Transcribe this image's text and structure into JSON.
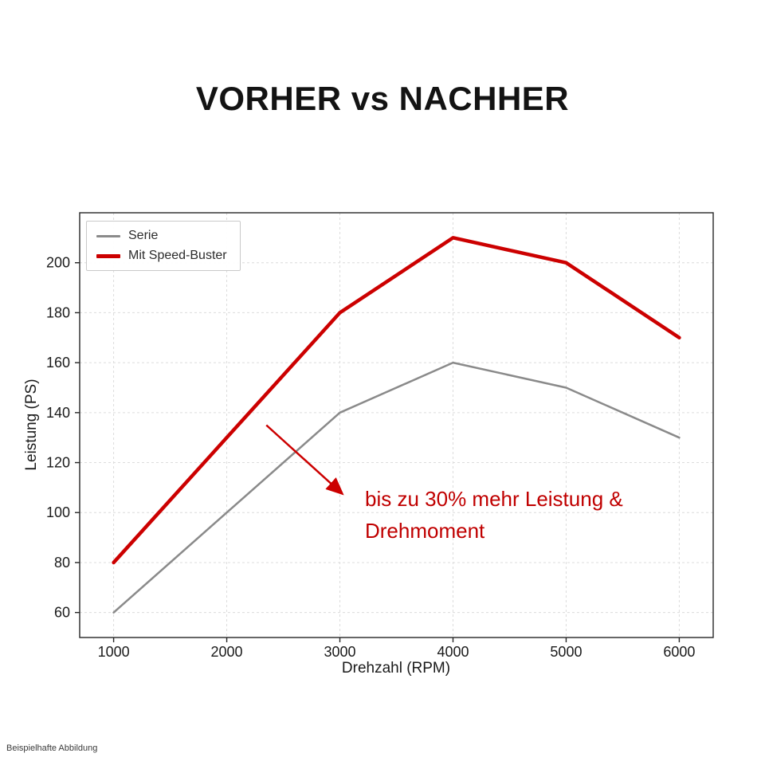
{
  "page": {
    "title": "VORHER vs NACHHER",
    "footnote": "Beispielhafte Abbildung"
  },
  "annotation": {
    "line1": "bis zu 30% mehr Leistung &",
    "line2": "Drehmoment",
    "color": "#c00000"
  },
  "chart_data": {
    "type": "line",
    "title": "VORHER vs NACHHER",
    "x": [
      1000,
      2000,
      3000,
      4000,
      5000,
      6000
    ],
    "series": [
      {
        "name": "Serie",
        "color": "#8a8a8a",
        "line_width": 2.5,
        "values": [
          60,
          100,
          140,
          160,
          150,
          130
        ]
      },
      {
        "name": "Mit Speed-Buster",
        "color": "#cc0000",
        "line_width": 4.5,
        "values": [
          80,
          130,
          180,
          210,
          200,
          170
        ]
      }
    ],
    "xlabel": "Drehzahl (RPM)",
    "ylabel": "Leistung (PS)",
    "xticks": [
      1000,
      2000,
      3000,
      4000,
      5000,
      6000
    ],
    "yticks": [
      60,
      80,
      100,
      120,
      140,
      160,
      180,
      200
    ],
    "xlim": [
      700,
      6300
    ],
    "ylim": [
      50,
      220
    ],
    "grid": true,
    "grid_color": "#dcdcdc",
    "axis_color": "#262626",
    "tick_label_color": "#1a1a1a",
    "legend_position": "upper left",
    "arrow": {
      "from": [
        2350,
        135
      ],
      "to": [
        3010,
        108
      ]
    }
  }
}
